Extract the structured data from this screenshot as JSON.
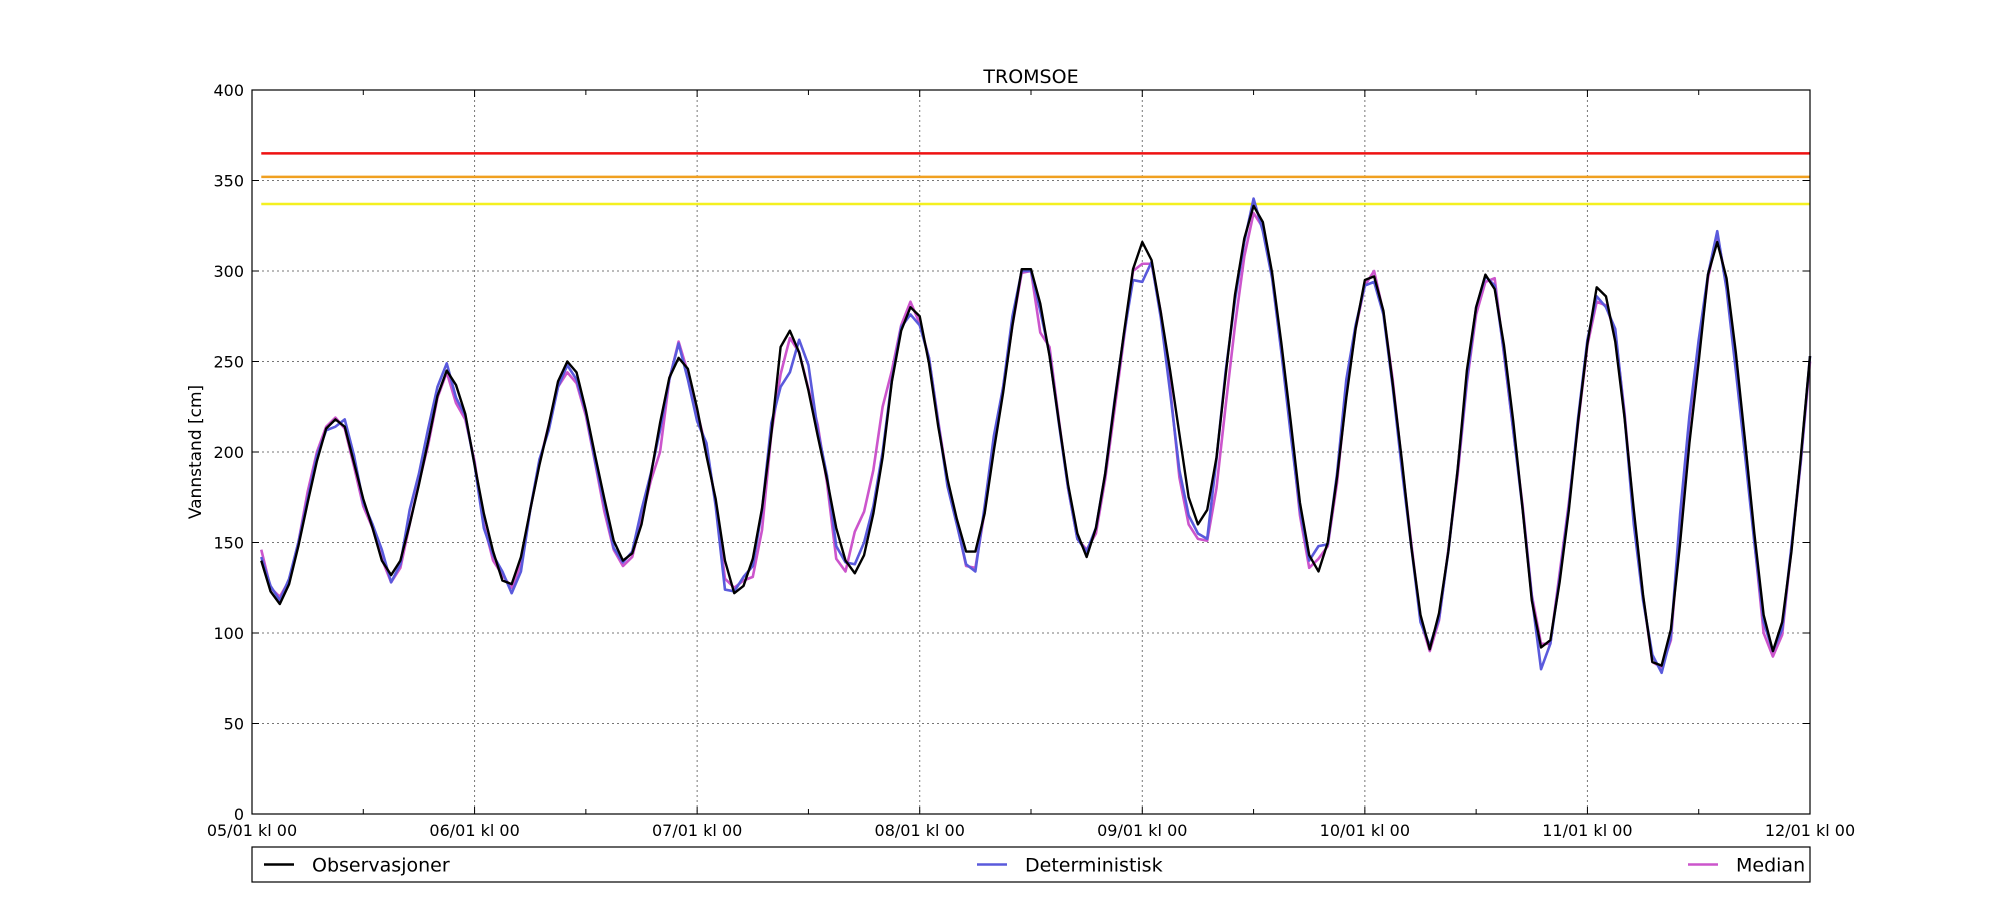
{
  "chart_data": {
    "type": "line",
    "title": "TROMSOE",
    "xlabel": "",
    "ylabel": "Vannstand [cm]",
    "ylim": [
      0,
      400
    ],
    "xlim": [
      0,
      168
    ],
    "grid": true,
    "legend_position": "bottom",
    "x_tick_values": [
      0,
      24,
      48,
      72,
      96,
      120,
      144,
      168
    ],
    "x_tick_labels": [
      "05/01 kl 00",
      "06/01 kl 00",
      "07/01 kl 00",
      "08/01 kl 00",
      "09/01 kl 00",
      "10/01 kl 00",
      "11/01 kl 00",
      "12/01 kl 00"
    ],
    "x_minor_ticks": [
      12,
      36,
      60,
      84,
      108,
      132,
      156
    ],
    "y_ticks": [
      0,
      50,
      100,
      150,
      200,
      250,
      300,
      350,
      400
    ],
    "thresholds": [
      {
        "value": 365,
        "color": "#ee1111"
      },
      {
        "value": 352,
        "color": "#f0a020"
      },
      {
        "value": 337,
        "color": "#f4f020"
      }
    ],
    "x": [
      1,
      2,
      3,
      4,
      5,
      6,
      7,
      8,
      9,
      10,
      11,
      12,
      13,
      14,
      15,
      16,
      17,
      18,
      19,
      20,
      21,
      22,
      23,
      24,
      25,
      26,
      27,
      28,
      29,
      30,
      31,
      32,
      33,
      34,
      35,
      36,
      37,
      38,
      39,
      40,
      41,
      42,
      43,
      44,
      45,
      46,
      47,
      48,
      49,
      50,
      51,
      52,
      53,
      54,
      55,
      56,
      57,
      58,
      59,
      60,
      61,
      62,
      63,
      64,
      65,
      66,
      67,
      68,
      69,
      70,
      71,
      72,
      73,
      74,
      75,
      76,
      77,
      78,
      79,
      80,
      81,
      82,
      83,
      84,
      85,
      86,
      87,
      88,
      89,
      90,
      91,
      92,
      93,
      94,
      95,
      96,
      97,
      98,
      99,
      100,
      101,
      102,
      103,
      104,
      105,
      106,
      107,
      108,
      109,
      110,
      111,
      112,
      113,
      114,
      115,
      116,
      117,
      118,
      119,
      120,
      121,
      122,
      123,
      124,
      125,
      126,
      127,
      128,
      129,
      130,
      131,
      132,
      133,
      134,
      135,
      136,
      137,
      138,
      139,
      140,
      141,
      142,
      143,
      144,
      145,
      146,
      147,
      148,
      149,
      150,
      151,
      152,
      153,
      154,
      155,
      156,
      157,
      158,
      159,
      160,
      161,
      162,
      163,
      164,
      165,
      166,
      167,
      168
    ],
    "series": [
      {
        "name": "Observasjoner",
        "color": "#000000",
        "values": [
          140,
          123,
          116,
          127,
          148,
          172,
          195,
          213,
          218,
          214,
          194,
          174,
          158,
          140,
          132,
          140,
          160,
          182,
          206,
          231,
          245,
          237,
          221,
          193,
          166,
          145,
          129,
          127,
          142,
          168,
          193,
          215,
          239,
          250,
          244,
          223,
          198,
          174,
          151,
          140,
          144,
          160,
          187,
          216,
          241,
          252,
          246,
          224,
          198,
          174,
          140,
          122,
          126,
          141,
          169,
          210,
          258,
          267,
          255,
          234,
          209,
          185,
          158,
          140,
          133,
          143,
          166,
          197,
          239,
          267,
          280,
          275,
          249,
          214,
          185,
          163,
          145,
          145,
          166,
          201,
          233,
          270,
          301,
          301,
          282,
          253,
          217,
          182,
          155,
          142,
          158,
          188,
          227,
          265,
          301,
          316,
          306,
          277,
          245,
          210,
          175,
          160,
          168,
          197,
          243,
          287,
          318,
          336,
          327,
          299,
          260,
          217,
          172,
          143,
          134,
          150,
          186,
          230,
          268,
          295,
          297,
          278,
          238,
          195,
          148,
          110,
          91,
          111,
          145,
          190,
          245,
          280,
          298,
          290,
          259,
          217,
          169,
          118,
          92,
          96,
          128,
          168,
          217,
          260,
          291,
          286,
          261,
          219,
          168,
          121,
          84,
          82,
          102,
          150,
          205,
          250,
          298,
          316,
          296,
          255,
          206,
          155,
          110,
          90,
          106,
          145,
          197,
          253
        ]
      },
      {
        "name": "Deterministisk",
        "color": "#5a5adc",
        "values": [
          142,
          126,
          118,
          130,
          150,
          174,
          198,
          212,
          214,
          218,
          198,
          172,
          160,
          146,
          128,
          138,
          168,
          188,
          213,
          236,
          249,
          230,
          220,
          193,
          158,
          143,
          134,
          122,
          134,
          168,
          196,
          212,
          236,
          248,
          240,
          222,
          195,
          171,
          147,
          139,
          145,
          168,
          188,
          212,
          240,
          260,
          240,
          217,
          205,
          170,
          124,
          123,
          131,
          137,
          168,
          216,
          236,
          244,
          262,
          248,
          212,
          187,
          148,
          139,
          138,
          150,
          170,
          200,
          240,
          269,
          276,
          270,
          252,
          216,
          181,
          160,
          138,
          134,
          170,
          209,
          236,
          275,
          300,
          300,
          278,
          254,
          216,
          180,
          152,
          145,
          158,
          188,
          228,
          264,
          295,
          294,
          305,
          274,
          233,
          190,
          165,
          155,
          152,
          196,
          245,
          284,
          316,
          340,
          322,
          296,
          255,
          210,
          168,
          140,
          148,
          149,
          188,
          240,
          270,
          292,
          294,
          276,
          236,
          190,
          148,
          106,
          93,
          108,
          145,
          190,
          240,
          280,
          297,
          292,
          255,
          212,
          169,
          120,
          80,
          94,
          130,
          170,
          219,
          262,
          286,
          280,
          268,
          220,
          160,
          118,
          88,
          78,
          98,
          166,
          220,
          262,
          298,
          322,
          290,
          245,
          198,
          150,
          106,
          90,
          102,
          148,
          195,
          253
        ]
      },
      {
        "name": "Median",
        "color": "#cc55cc",
        "values": [
          146,
          125,
          120,
          129,
          150,
          178,
          200,
          214,
          219,
          213,
          192,
          170,
          158,
          141,
          128,
          136,
          160,
          183,
          204,
          230,
          244,
          227,
          218,
          195,
          160,
          140,
          132,
          125,
          138,
          168,
          194,
          215,
          236,
          244,
          238,
          220,
          194,
          167,
          146,
          137,
          142,
          163,
          184,
          200,
          240,
          261,
          244,
          222,
          202,
          172,
          130,
          125,
          129,
          131,
          157,
          210,
          243,
          263,
          255,
          235,
          215,
          183,
          141,
          134,
          156,
          167,
          190,
          225,
          245,
          270,
          283,
          271,
          252,
          217,
          184,
          161,
          137,
          136,
          167,
          205,
          236,
          270,
          299,
          300,
          266,
          258,
          218,
          180,
          152,
          146,
          155,
          185,
          223,
          262,
          300,
          304,
          304,
          277,
          236,
          186,
          160,
          152,
          151,
          180,
          226,
          270,
          308,
          332,
          324,
          297,
          256,
          214,
          165,
          136,
          141,
          148,
          183,
          233,
          268,
          292,
          300,
          277,
          240,
          193,
          150,
          107,
          90,
          107,
          146,
          187,
          238,
          276,
          294,
          296,
          254,
          212,
          171,
          121,
          94,
          94,
          133,
          172,
          216,
          259,
          283,
          281,
          266,
          222,
          164,
          120,
          84,
          81,
          96,
          160,
          218,
          256,
          296,
          320,
          293,
          248,
          205,
          151,
          100,
          87,
          99,
          147,
          194,
          250
        ]
      }
    ]
  }
}
